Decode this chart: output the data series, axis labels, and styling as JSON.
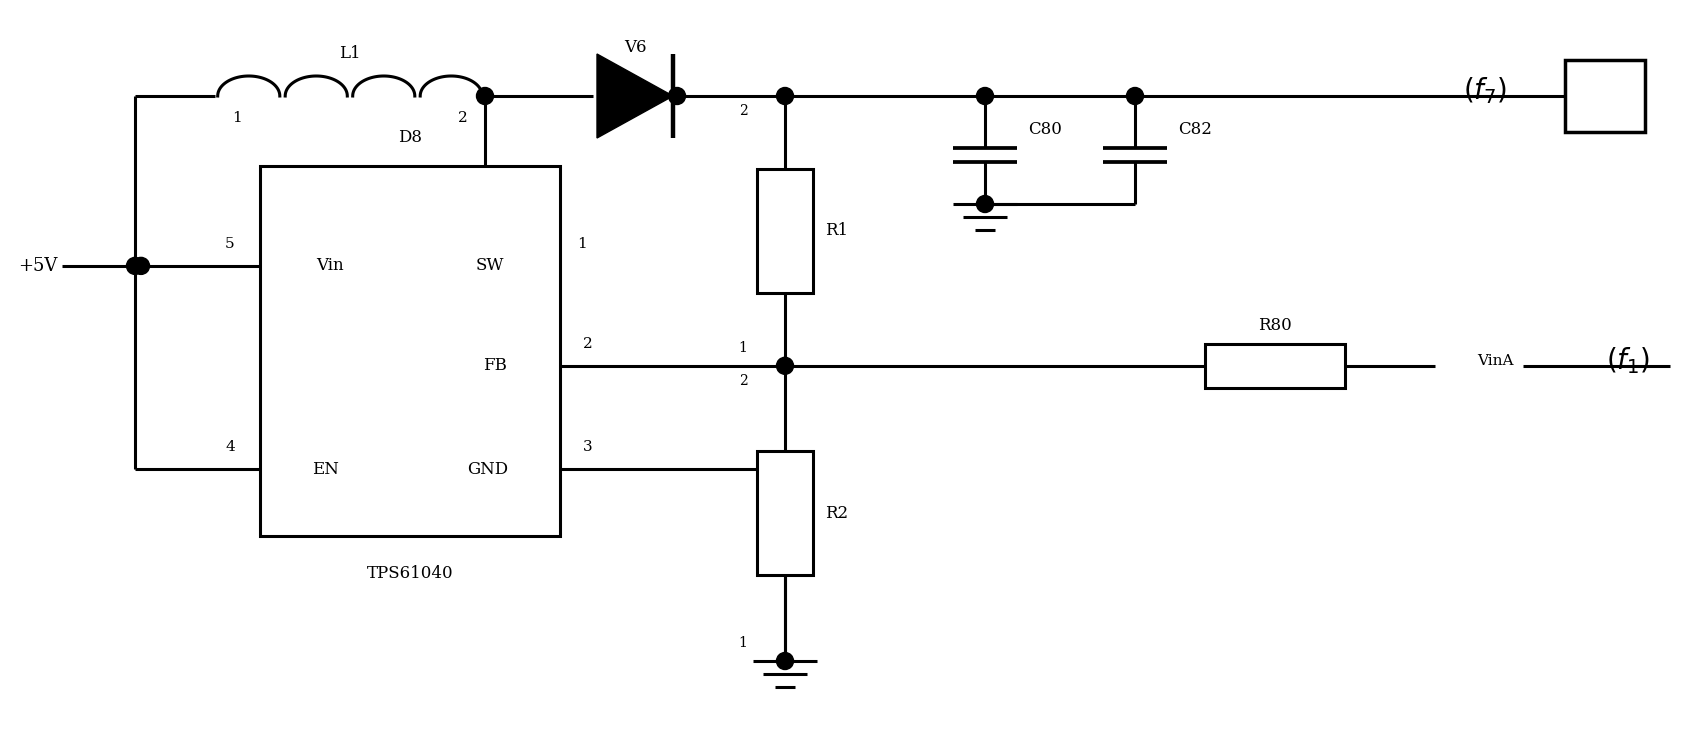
{
  "bg_color": "#ffffff",
  "line_color": "#000000",
  "lw": 2.2,
  "figsize": [
    17.0,
    7.46
  ],
  "dpi": 100,
  "xlim": [
    0,
    17
  ],
  "ylim": [
    0,
    7.46
  ]
}
